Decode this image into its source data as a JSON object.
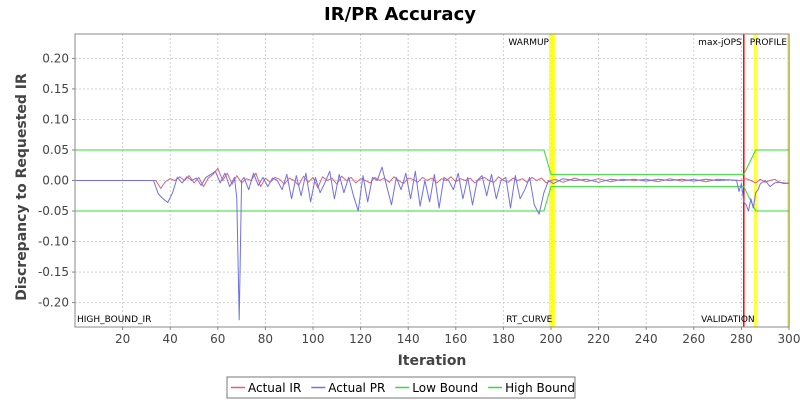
{
  "chart_data": {
    "type": "line",
    "title": "IR/PR Accuracy",
    "xlabel": "Iteration",
    "ylabel": "Discrepancy to Requested IR",
    "xlim": [
      0,
      300
    ],
    "ylim": [
      -0.24,
      0.24
    ],
    "x_ticks": [
      20,
      40,
      60,
      80,
      100,
      120,
      140,
      160,
      180,
      200,
      220,
      240,
      260,
      280,
      300
    ],
    "y_ticks": [
      0.2,
      0.15,
      0.1,
      0.05,
      0.0,
      -0.05,
      -0.1,
      -0.15,
      -0.2
    ],
    "y_tick_labels": [
      "0.20",
      "0.15",
      "0.10",
      "0.05",
      "0.00",
      "-0.05",
      "-0.10",
      "-0.15",
      "-0.20"
    ],
    "grid": true,
    "legend_position": "bottom-center",
    "markers": [
      {
        "label": "HIGH_BOUND_IR",
        "x": 0,
        "color": "#ffff00",
        "label_pos": "bottom"
      },
      {
        "label": "WARMUP",
        "x": 200,
        "color": "#ffff00",
        "label_pos": "top"
      },
      {
        "label": "RT_CURVE",
        "x": 201,
        "color": "#ffff00",
        "label_pos": "bottom"
      },
      {
        "label": "max-jOPS",
        "x": 281,
        "color": "#ff0000",
        "label_pos": "top"
      },
      {
        "label": "VALIDATION",
        "x": 286,
        "color": "#ffff00",
        "label_pos": "bottom"
      },
      {
        "label": "PROFILE",
        "x": 300,
        "color": "#ffff00",
        "label_pos": "top"
      }
    ],
    "series": [
      {
        "name": "Actual IR",
        "color": "#e0607a",
        "x": [
          0,
          34,
          36,
          38,
          40,
          42,
          44,
          46,
          48,
          50,
          52,
          54,
          56,
          58,
          60,
          62,
          64,
          66,
          68,
          70,
          72,
          74,
          76,
          78,
          80,
          82,
          84,
          86,
          88,
          90,
          92,
          94,
          96,
          98,
          100,
          102,
          104,
          106,
          108,
          110,
          112,
          114,
          116,
          118,
          120,
          122,
          124,
          126,
          128,
          130,
          132,
          134,
          136,
          138,
          140,
          142,
          144,
          146,
          148,
          150,
          152,
          154,
          156,
          158,
          160,
          162,
          164,
          166,
          168,
          170,
          172,
          174,
          176,
          178,
          180,
          182,
          184,
          186,
          188,
          190,
          192,
          194,
          196,
          198,
          200,
          202,
          205,
          210,
          215,
          220,
          225,
          230,
          235,
          240,
          245,
          250,
          255,
          260,
          265,
          270,
          275,
          280,
          282,
          284,
          286,
          288,
          290,
          292,
          294,
          296,
          298,
          300
        ],
        "y": [
          0.0,
          0.0,
          -0.013,
          -0.002,
          0.003,
          0.0,
          0.006,
          0.0,
          0.008,
          -0.004,
          0.005,
          -0.01,
          0.004,
          0.01,
          0.02,
          0.0,
          0.012,
          -0.006,
          0.008,
          -0.004,
          0.003,
          0.0,
          0.012,
          -0.01,
          0.004,
          -0.003,
          0.005,
          0.002,
          -0.006,
          0.004,
          0.0,
          -0.008,
          0.007,
          -0.003,
          0.005,
          -0.012,
          0.006,
          0.0,
          0.004,
          -0.006,
          0.007,
          0.0,
          0.005,
          -0.004,
          0.003,
          0.0,
          -0.004,
          0.005,
          0.0,
          0.004,
          -0.003,
          0.006,
          0.0,
          -0.005,
          0.004,
          0.002,
          -0.003,
          0.005,
          0.0,
          0.004,
          -0.004,
          0.003,
          0.0,
          0.006,
          -0.002,
          0.003,
          0.0,
          0.004,
          -0.004,
          0.002,
          0.005,
          0.0,
          -0.003,
          0.006,
          0.0,
          -0.003,
          0.004,
          0.0,
          0.003,
          -0.003,
          0.005,
          0.0,
          0.004,
          -0.004,
          0.0,
          0.002,
          -0.003,
          0.004,
          -0.002,
          0.003,
          -0.002,
          0.002,
          0.0,
          0.002,
          -0.002,
          0.003,
          -0.001,
          0.002,
          -0.002,
          0.002,
          0.001,
          0.0,
          0.003,
          0.0,
          -0.004,
          0.002,
          -0.003,
          0.0,
          0.002,
          -0.003,
          -0.004,
          -0.005
        ]
      },
      {
        "name": "Actual PR",
        "color": "#7070e8",
        "x": [
          0,
          33,
          35,
          37,
          39,
          41,
          43,
          45,
          47,
          49,
          51,
          53,
          55,
          57,
          59,
          61,
          63,
          65,
          67,
          68,
          69,
          70,
          71,
          73,
          75,
          77,
          79,
          81,
          83,
          85,
          87,
          89,
          91,
          93,
          95,
          97,
          99,
          101,
          103,
          105,
          107,
          109,
          111,
          113,
          115,
          117,
          119,
          121,
          123,
          125,
          127,
          129,
          131,
          133,
          135,
          137,
          139,
          141,
          143,
          145,
          147,
          149,
          151,
          153,
          155,
          157,
          159,
          161,
          163,
          165,
          167,
          169,
          171,
          173,
          175,
          177,
          179,
          181,
          183,
          185,
          187,
          189,
          191,
          193,
          195,
          197,
          199,
          201,
          205,
          210,
          215,
          220,
          225,
          230,
          235,
          240,
          245,
          250,
          255,
          260,
          265,
          270,
          275,
          278,
          279,
          280,
          281,
          282,
          283,
          284,
          285,
          286,
          287,
          288,
          290,
          292,
          294,
          296,
          298,
          300
        ],
        "y": [
          0.0,
          0.0,
          -0.022,
          -0.03,
          -0.036,
          -0.02,
          0.005,
          -0.004,
          0.006,
          0.0,
          0.004,
          -0.008,
          0.005,
          0.01,
          0.015,
          -0.004,
          0.012,
          -0.01,
          0.005,
          -0.03,
          -0.228,
          0.0,
          0.005,
          -0.015,
          0.012,
          -0.008,
          0.005,
          -0.01,
          0.004,
          0.0,
          -0.015,
          0.01,
          -0.03,
          0.008,
          -0.025,
          0.012,
          -0.035,
          0.005,
          -0.02,
          -0.004,
          0.015,
          -0.03,
          0.01,
          -0.02,
          0.005,
          -0.025,
          -0.05,
          0.008,
          -0.035,
          0.005,
          0.0,
          0.022,
          -0.01,
          -0.04,
          0.005,
          -0.015,
          0.012,
          -0.03,
          0.015,
          -0.042,
          0.0,
          -0.035,
          0.01,
          -0.045,
          0.005,
          0.0,
          -0.015,
          0.012,
          -0.03,
          0.005,
          -0.04,
          0.0,
          0.008,
          -0.025,
          0.01,
          -0.03,
          0.0,
          0.005,
          -0.045,
          0.008,
          -0.03,
          -0.015,
          0.005,
          -0.04,
          -0.055,
          -0.02,
          0.0,
          -0.005,
          0.003,
          0.0,
          0.002,
          -0.003,
          0.002,
          0.0,
          0.002,
          -0.001,
          0.002,
          0.0,
          0.002,
          -0.001,
          0.002,
          0.0,
          0.001,
          0.0,
          -0.018,
          -0.005,
          -0.035,
          -0.04,
          -0.05,
          -0.03,
          -0.045,
          -0.02,
          -0.015,
          -0.005,
          0.0,
          -0.01,
          -0.004,
          -0.003,
          -0.005,
          -0.004
        ]
      },
      {
        "name": "Low Bound",
        "color": "#33dd33",
        "x": [
          0,
          197,
          200,
          281,
          286,
          300
        ],
        "y": [
          -0.05,
          -0.05,
          -0.01,
          -0.01,
          -0.05,
          -0.05
        ]
      },
      {
        "name": "High Bound",
        "color": "#33dd33",
        "x": [
          0,
          197,
          200,
          281,
          286,
          300
        ],
        "y": [
          0.05,
          0.05,
          0.01,
          0.01,
          0.05,
          0.05
        ]
      }
    ]
  }
}
